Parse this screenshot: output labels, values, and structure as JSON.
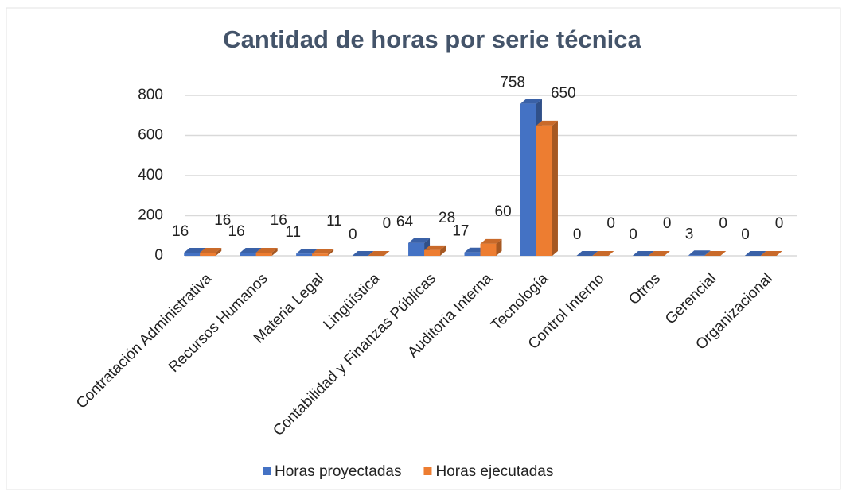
{
  "chart_data": {
    "type": "bar3d",
    "title": "Cantidad de horas por serie técnica",
    "categories": [
      "Contratación Administrativa",
      "Recursos Humanos",
      "Materia Legal",
      "Lingüística",
      "Contabilidad y Finanzas Públicas",
      "Auditoría Interna",
      "Tecnología",
      "Control Interno",
      "Otros",
      "Gerencial",
      "Organizacional"
    ],
    "series": [
      {
        "name": "Horas proyectadas",
        "color": "#4472c4",
        "values": [
          16,
          16,
          11,
          0,
          64,
          17,
          758,
          0,
          0,
          3,
          0
        ]
      },
      {
        "name": "Horas ejecutadas",
        "color": "#ed7d31",
        "values": [
          16,
          16,
          11,
          0,
          28,
          60,
          650,
          0,
          0,
          0,
          0
        ]
      }
    ],
    "ylim": [
      0,
      800
    ],
    "yticks": [
      0,
      200,
      400,
      600,
      800
    ],
    "grid": true,
    "legend": "bottom"
  }
}
